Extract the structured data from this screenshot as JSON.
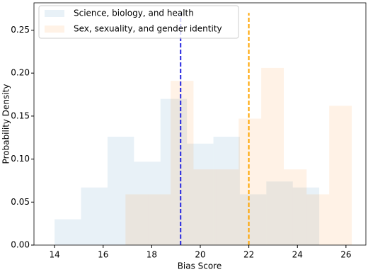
{
  "chart_data": {
    "type": "histogram",
    "xlabel": "Bias Score",
    "ylabel": "Probability Density",
    "xlim": [
      13.15,
      26.82
    ],
    "ylim": [
      0,
      0.2817
    ],
    "xticks": [
      14,
      16,
      18,
      20,
      22,
      24,
      26
    ],
    "yticks": [
      {
        "value": 0,
        "label": "0.00"
      },
      {
        "value": 0.05,
        "label": "0.05"
      },
      {
        "value": 0.1,
        "label": "0.10"
      },
      {
        "value": 0.15,
        "label": "0.15"
      },
      {
        "value": 0.2,
        "label": "0.20"
      },
      {
        "value": 0.25,
        "label": "0.25"
      }
    ],
    "legend": "upper left",
    "series": [
      {
        "name": "Science, biology, and health",
        "color": "#1f77b4",
        "bins": [
          14,
          15.09,
          16.18,
          17.27,
          18.36,
          19.45,
          20.54,
          21.63,
          22.72,
          23.81,
          24.9
        ],
        "values": [
          0.03,
          0.067,
          0.126,
          0.097,
          0.17,
          0.118,
          0.126,
          0.059,
          0.074,
          0.067
        ]
      },
      {
        "name": "Sex, sexuality, and gender identity",
        "color": "#ff7f0e",
        "bins": [
          16.92,
          17.85,
          18.78,
          19.72,
          20.65,
          21.58,
          22.51,
          23.44,
          24.38,
          25.31,
          26.24
        ],
        "values": [
          0.059,
          0.059,
          0.191,
          0.088,
          0.088,
          0.147,
          0.206,
          0.088,
          0.059,
          0.162
        ]
      }
    ],
    "vlines": [
      {
        "x": 19.19,
        "top": 0.27,
        "color": "#2525e0"
      },
      {
        "x": 22.0,
        "top": 0.27,
        "color": "#ffa500"
      }
    ]
  }
}
